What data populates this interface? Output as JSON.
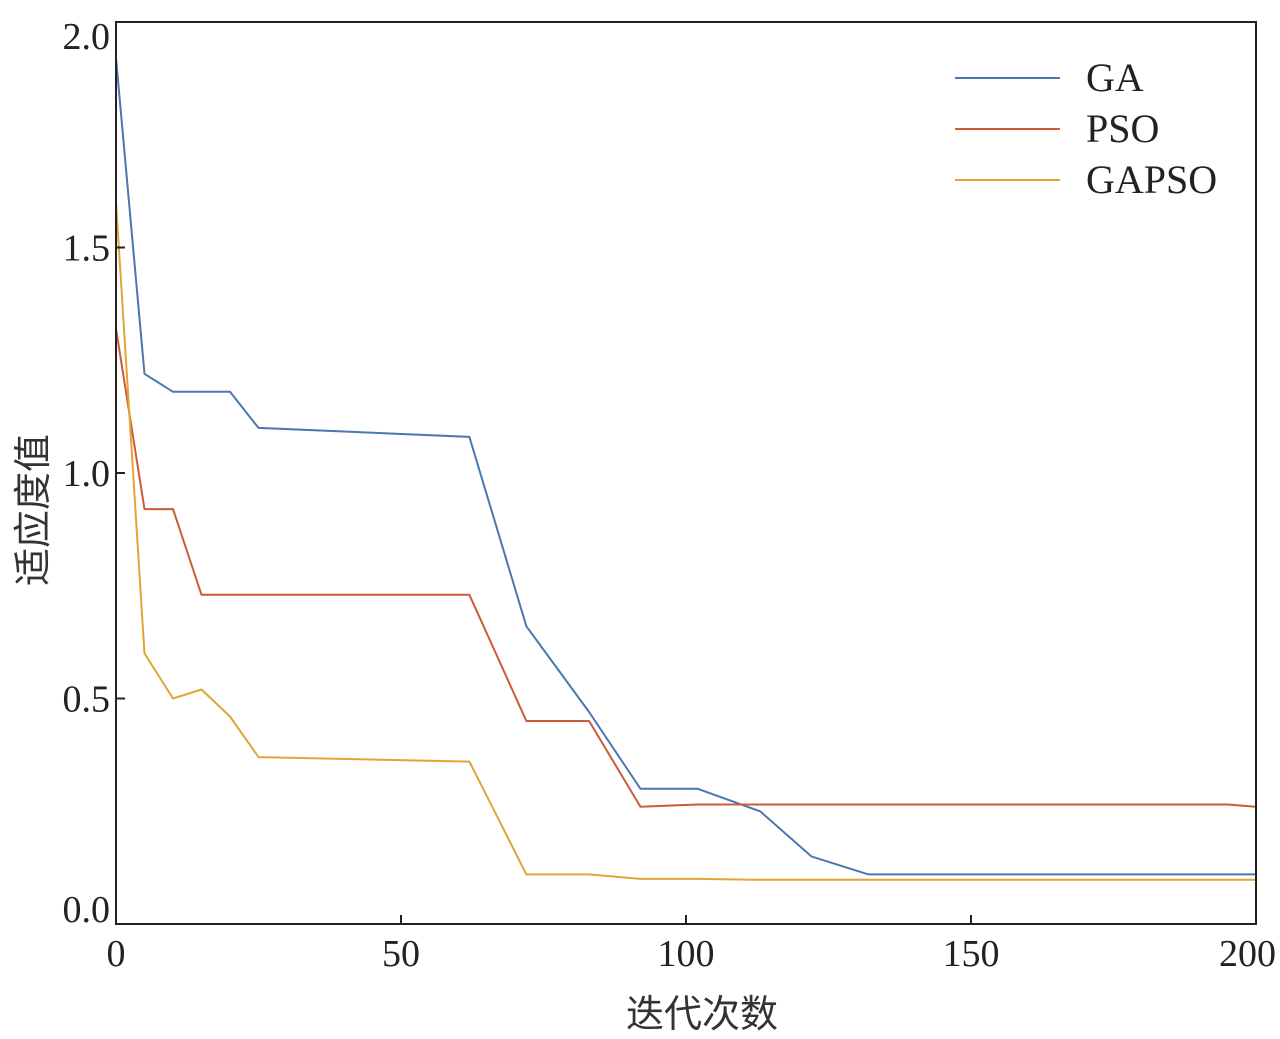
{
  "chart_data": {
    "type": "line",
    "title": "",
    "xlabel": "迭代次数",
    "ylabel": "适应度值",
    "xlim": [
      0,
      200
    ],
    "ylim": [
      0,
      2.0
    ],
    "xticks": [
      0,
      50,
      100,
      150,
      200
    ],
    "xtick_labels": [
      "0",
      "50",
      "100",
      "150",
      "200"
    ],
    "yticks": [
      0,
      0.5,
      1.0,
      1.5,
      2.0
    ],
    "ytick_labels": [
      "0.0",
      "0.5",
      "1.0",
      "1.5",
      "2.0"
    ],
    "grid": false,
    "legend_position": "top-right",
    "series": [
      {
        "name": "GA",
        "color": "#4a78ad",
        "x": [
          0,
          5,
          10,
          15,
          20,
          25,
          62,
          72,
          83,
          92,
          102,
          113,
          122,
          132,
          200
        ],
        "y": [
          1.92,
          1.22,
          1.18,
          1.18,
          1.18,
          1.1,
          1.08,
          0.66,
          0.47,
          0.3,
          0.3,
          0.25,
          0.15,
          0.11,
          0.11
        ]
      },
      {
        "name": "PSO",
        "color": "#cc5a3b",
        "x": [
          0,
          5,
          10,
          15,
          20,
          62,
          72,
          83,
          92,
          102,
          112,
          195,
          200
        ],
        "y": [
          1.32,
          0.92,
          0.92,
          0.73,
          0.73,
          0.73,
          0.45,
          0.45,
          0.26,
          0.265,
          0.265,
          0.265,
          0.26
        ]
      },
      {
        "name": "GAPSO",
        "color": "#e0a437",
        "x": [
          0,
          5,
          10,
          15,
          20,
          25,
          62,
          72,
          83,
          92,
          102,
          112,
          200
        ],
        "y": [
          1.6,
          0.6,
          0.5,
          0.52,
          0.46,
          0.37,
          0.36,
          0.11,
          0.11,
          0.1,
          0.1,
          0.098,
          0.098
        ]
      }
    ]
  }
}
